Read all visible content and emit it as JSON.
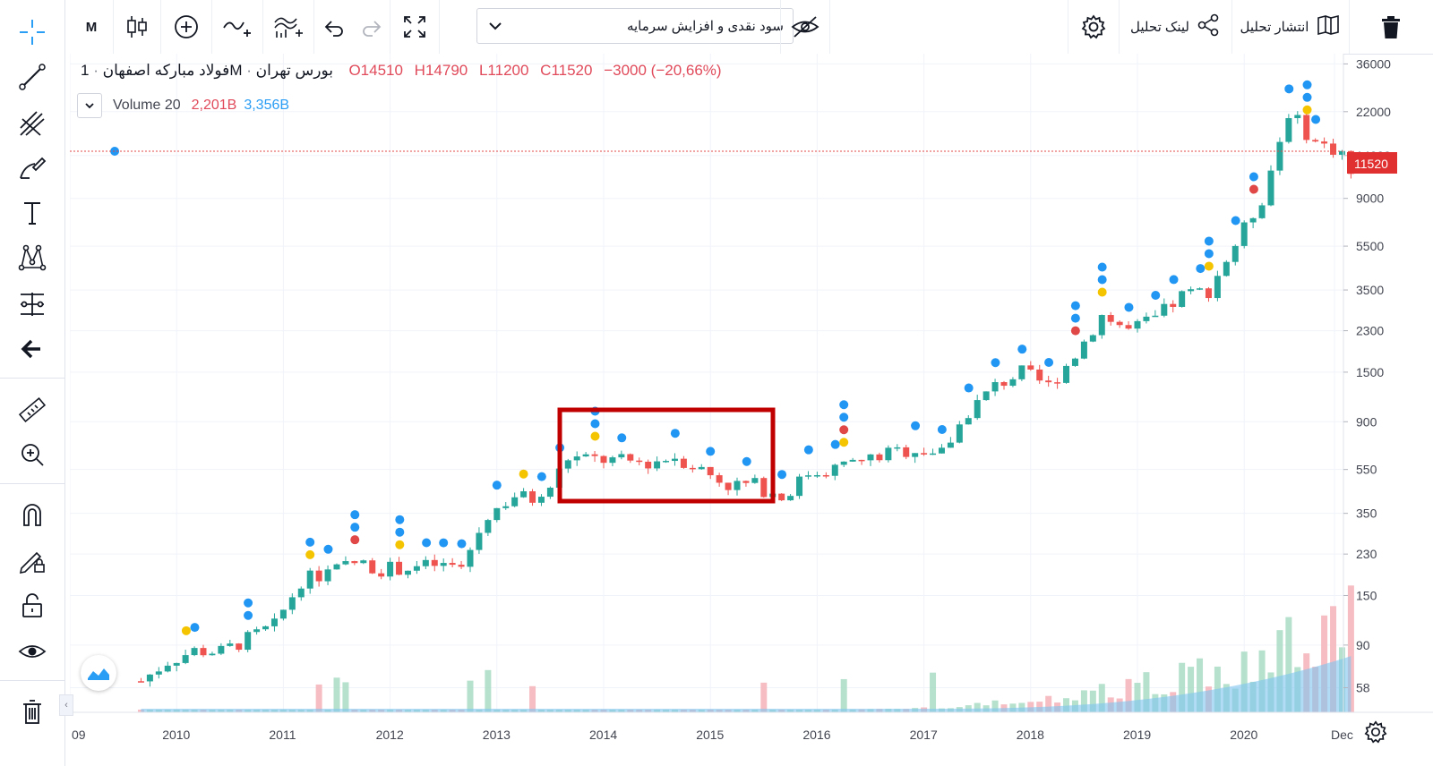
{
  "toolbar": {
    "interval": "M",
    "indicator_select": "سود نقدی و افزایش سرمایه",
    "share_label": "لینک تحلیل",
    "publish_label": "انتشار تحلیل"
  },
  "legend": {
    "symbol": "فولاد مبارکه اصفهان",
    "interval": "1M",
    "exchange": "بورس تهران",
    "open": "O14510",
    "high": "H14790",
    "low": "L11200",
    "close": "C11520",
    "change": "−3000 (−20,66%)",
    "volume_label": "Volume 20",
    "volume_value1": "2,201B",
    "volume_value2": "3,356B"
  },
  "price_axis": {
    "ticks": [
      "36000",
      "22000",
      "14000",
      "9000",
      "5500",
      "3500",
      "2300",
      "1500",
      "900",
      "550",
      "350",
      "230",
      "150",
      "90",
      "58"
    ],
    "last_price": "11520"
  },
  "time_axis": {
    "ticks": [
      "09",
      "2010",
      "2011",
      "2012",
      "2013",
      "2014",
      "2015",
      "2016",
      "2017",
      "2018",
      "2019",
      "2020",
      "Dec"
    ]
  },
  "colors": {
    "up": "#26a69a",
    "down": "#ef5350",
    "marker_blue": "#2196f3",
    "marker_yellow": "#f5c400",
    "marker_red": "#e04848",
    "highlight_box": "#c00000",
    "volume_ma": "#7fc4f0"
  },
  "chart_data": {
    "type": "candlestick",
    "title": "",
    "scale": "log",
    "ylim": [
      45,
      40000
    ],
    "series": [
      {
        "name": "Volume 20",
        "type": "area"
      }
    ],
    "x": [
      "2009-09",
      "2010",
      "2011",
      "2012",
      "2013",
      "2014",
      "2015",
      "2016",
      "2017",
      "2018",
      "2019",
      "2020",
      "Dec"
    ],
    "close_points": [
      [
        "2009-09",
        62
      ],
      [
        "2009-12",
        76
      ],
      [
        "2010-03",
        85
      ],
      [
        "2010-06",
        84
      ],
      [
        "2010-09",
        96
      ],
      [
        "2010-12",
        110
      ],
      [
        "2011-03",
        175
      ],
      [
        "2011-06",
        190
      ],
      [
        "2011-09",
        210
      ],
      [
        "2011-12",
        198
      ],
      [
        "2012-03",
        200
      ],
      [
        "2012-06",
        205
      ],
      [
        "2012-09",
        200
      ],
      [
        "2012-12",
        345
      ],
      [
        "2013-03",
        420
      ],
      [
        "2013-06",
        400
      ],
      [
        "2013-09",
        620
      ],
      [
        "2013-12",
        610
      ],
      [
        "2014-03",
        600
      ],
      [
        "2014-06",
        590
      ],
      [
        "2014-09",
        630
      ],
      [
        "2014-12",
        550
      ],
      [
        "2015-03",
        470
      ],
      [
        "2015-06",
        470
      ],
      [
        "2015-09",
        410
      ],
      [
        "2015-12",
        530
      ],
      [
        "2016-03",
        560
      ],
      [
        "2016-06",
        600
      ],
      [
        "2016-09",
        650
      ],
      [
        "2016-12",
        680
      ],
      [
        "2017-03",
        650
      ],
      [
        "2017-06",
        1000
      ],
      [
        "2017-09",
        1300
      ],
      [
        "2017-12",
        1500
      ],
      [
        "2018-03",
        1300
      ],
      [
        "2018-06",
        1800
      ],
      [
        "2018-09",
        2700
      ],
      [
        "2018-12",
        2300
      ],
      [
        "2019-03",
        2600
      ],
      [
        "2019-06",
        3300
      ],
      [
        "2019-09",
        3500
      ],
      [
        "2019-12",
        5600
      ],
      [
        "2020-03",
        9000
      ],
      [
        "2020-06",
        22000
      ],
      [
        "2020-09",
        16000
      ],
      [
        "2020-12",
        14510
      ],
      [
        "2021-01",
        11520
      ]
    ],
    "last": 11520
  }
}
